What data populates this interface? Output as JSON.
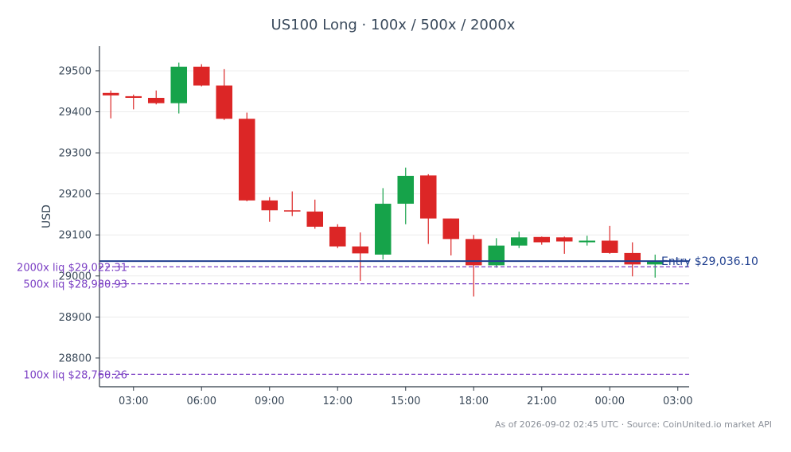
{
  "colors": {
    "up": "#16a34a",
    "down": "#dc2626",
    "entry": "#1f3f8f",
    "liq": "#7b3fc4",
    "grid": "#ececec",
    "axis": "#2f3a46"
  },
  "footer": "As of 2026-09-02 02:45 UTC · Source: CoinUnited.io market API",
  "chart_data": {
    "type": "candlestick",
    "title": "US100 Long · 100x / 500x / 2000x",
    "ylabel": "USD",
    "xlabel": "",
    "ylim": [
      28730,
      29560
    ],
    "yticks": [
      28800,
      28900,
      29000,
      29100,
      29200,
      29300,
      29400,
      29500
    ],
    "x_range": [
      0.5,
      26.5
    ],
    "xticks": [
      {
        "x": 2,
        "label": "03:00"
      },
      {
        "x": 5,
        "label": "06:00"
      },
      {
        "x": 8,
        "label": "09:00"
      },
      {
        "x": 11,
        "label": "12:00"
      },
      {
        "x": 14,
        "label": "15:00"
      },
      {
        "x": 17,
        "label": "18:00"
      },
      {
        "x": 20,
        "label": "21:00"
      },
      {
        "x": 23,
        "label": "00:00"
      },
      {
        "x": 26,
        "label": "03:00"
      }
    ],
    "grid": true,
    "candles": [
      {
        "x": 1,
        "open": 29446,
        "high": 29452,
        "low": 29384,
        "close": 29440
      },
      {
        "x": 2,
        "open": 29438,
        "high": 29442,
        "low": 29406,
        "close": 29434
      },
      {
        "x": 3,
        "open": 29434,
        "high": 29452,
        "low": 29418,
        "close": 29421
      },
      {
        "x": 4,
        "open": 29421,
        "high": 29520,
        "low": 29396,
        "close": 29510
      },
      {
        "x": 5,
        "open": 29510,
        "high": 29516,
        "low": 29462,
        "close": 29464
      },
      {
        "x": 6,
        "open": 29464,
        "high": 29504,
        "low": 29380,
        "close": 29383
      },
      {
        "x": 7,
        "open": 29383,
        "high": 29398,
        "low": 29182,
        "close": 29184
      },
      {
        "x": 8,
        "open": 29184,
        "high": 29192,
        "low": 29132,
        "close": 29160
      },
      {
        "x": 9,
        "open": 29160,
        "high": 29206,
        "low": 29146,
        "close": 29157
      },
      {
        "x": 10,
        "open": 29157,
        "high": 29186,
        "low": 29115,
        "close": 29120
      },
      {
        "x": 11,
        "open": 29120,
        "high": 29126,
        "low": 29068,
        "close": 29072
      },
      {
        "x": 12,
        "open": 29072,
        "high": 29106,
        "low": 28988,
        "close": 29055
      },
      {
        "x": 13,
        "open": 29052,
        "high": 29214,
        "low": 29040,
        "close": 29176
      },
      {
        "x": 14,
        "open": 29176,
        "high": 29264,
        "low": 29126,
        "close": 29244
      },
      {
        "x": 15,
        "open": 29245,
        "high": 29248,
        "low": 29078,
        "close": 29140
      },
      {
        "x": 16,
        "open": 29140,
        "high": 29140,
        "low": 29050,
        "close": 29090
      },
      {
        "x": 17,
        "open": 29090,
        "high": 29100,
        "low": 28950,
        "close": 29026
      },
      {
        "x": 18,
        "open": 29026,
        "high": 29092,
        "low": 29020,
        "close": 29074
      },
      {
        "x": 19,
        "open": 29074,
        "high": 29108,
        "low": 29068,
        "close": 29094
      },
      {
        "x": 20,
        "open": 29095,
        "high": 29096,
        "low": 29076,
        "close": 29082
      },
      {
        "x": 21,
        "open": 29094,
        "high": 29096,
        "low": 29054,
        "close": 29084
      },
      {
        "x": 22,
        "open": 29082,
        "high": 29098,
        "low": 29074,
        "close": 29086
      },
      {
        "x": 23,
        "open": 29086,
        "high": 29122,
        "low": 29054,
        "close": 29056
      },
      {
        "x": 24,
        "open": 29056,
        "high": 29082,
        "low": 28999,
        "close": 29028
      },
      {
        "x": 25,
        "open": 29028,
        "high": 29052,
        "low": 28996,
        "close": 29036
      }
    ],
    "entry": {
      "value": 29036.1,
      "label": "Entry $29,036.10"
    },
    "liquidations": [
      {
        "value": 29022.31,
        "label": "2000x liq $29,022.31"
      },
      {
        "value": 28980.93,
        "label": "500x liq $28,980.93"
      },
      {
        "value": 28760.26,
        "label": "100x liq $28,760.26"
      }
    ]
  }
}
